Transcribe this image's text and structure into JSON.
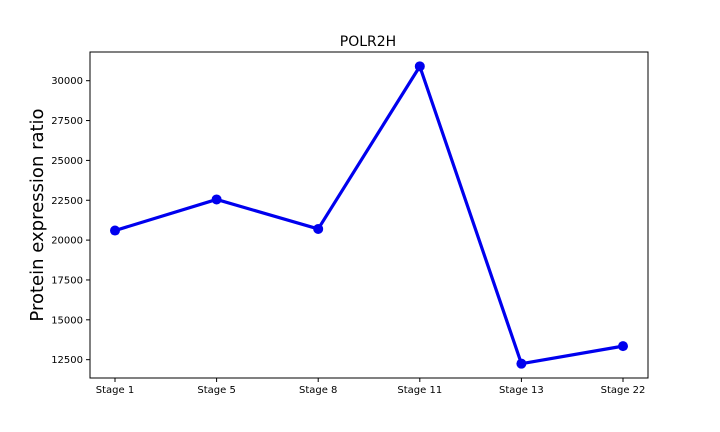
{
  "chart_data": {
    "type": "line",
    "title": "POLR2H",
    "xlabel": "",
    "ylabel": "Protein expression ratio",
    "categories": [
      "Stage 1",
      "Stage 5",
      "Stage 8",
      "Stage 11",
      "Stage 13",
      "Stage 22"
    ],
    "series": [
      {
        "name": "POLR2H",
        "values": [
          20600,
          22550,
          20700,
          30900,
          12250,
          13350
        ],
        "color": "#0000ee"
      }
    ],
    "yticks": [
      12500,
      15000,
      17500,
      20000,
      22500,
      25000,
      27500,
      30000
    ],
    "ytick_labels": [
      "12500",
      "15000",
      "17500",
      "20000",
      "22500",
      "25000",
      "27500",
      "30000"
    ],
    "ylim": [
      11350,
      31800
    ],
    "grid": false,
    "legend": false
  }
}
